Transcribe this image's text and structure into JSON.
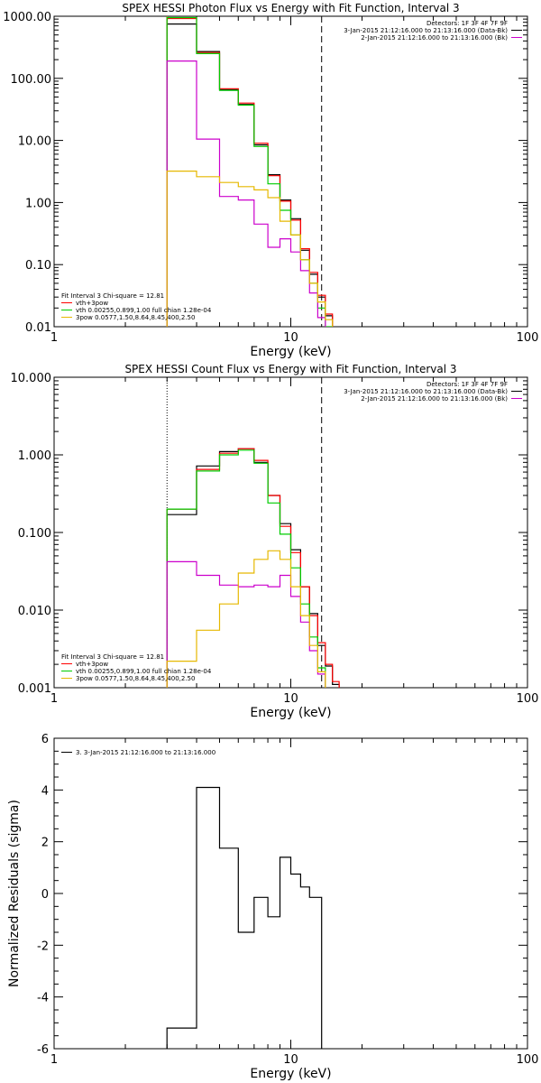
{
  "chart_data": [
    {
      "type": "line",
      "title": "SPEX HESSI Photon Flux vs Energy with Fit Function, Interval 3",
      "xlabel": "Energy (keV)",
      "ylabel": "",
      "xscale": "log",
      "yscale": "log",
      "xlim": [
        1,
        100
      ],
      "ylim": [
        0.01,
        1000
      ],
      "x_ticks": [
        "1",
        "10",
        "100"
      ],
      "y_ticks": [
        "0.01",
        "0.10",
        "1.00",
        "10.00",
        "100.00",
        "1000.00"
      ],
      "vlines": [
        {
          "x": 3.0,
          "style": "dotted",
          "color": "#ff8c00"
        },
        {
          "x": 13.5,
          "style": "dashed",
          "color": "#000000"
        }
      ],
      "legend_top": {
        "placement": "top-right",
        "lines": [
          {
            "text": "Detectors: 1F 3F 4F 7F 9F",
            "color": ""
          },
          {
            "text": "3-Jan-2015 21:12:16.000 to 21:13:16.000 (Data-Bk)",
            "color": "#000000"
          },
          {
            "text": "2-Jan-2015 21:12:16.000 to 21:13:16.000 (Bk)",
            "color": "#cc00cc"
          }
        ]
      },
      "legend_bottom": {
        "placement": "bottom-left",
        "lines": [
          {
            "text": "Fit Interval 3   Chi-square = 12.81",
            "color": ""
          },
          {
            "text": "vth+3pow",
            "color": "#ff0000"
          },
          {
            "text": "vth 0.00255,0.899,1.00   full chian 1.28e-04",
            "color": "#00cc00"
          },
          {
            "text": "3pow 0.0577,1.50,8.64,8.45,400,2.50",
            "color": "#e6b800"
          }
        ]
      },
      "edges": [
        3.0,
        4.0,
        5.0,
        6.0,
        7.0,
        8.0,
        9.0,
        10.0,
        11.0,
        12.0,
        13.0,
        14.0,
        15.0,
        16.0,
        17.0
      ],
      "series": [
        {
          "color": "#000000",
          "values": [
            750,
            270,
            66,
            38,
            8.5,
            2.8,
            1.1,
            0.55,
            0.17,
            0.07,
            0.03,
            0.015,
            null,
            null
          ]
        },
        {
          "color": "#ff0000",
          "values": [
            920,
            260,
            68,
            40,
            9.0,
            2.7,
            1.05,
            0.52,
            0.18,
            0.075,
            0.032,
            0.016,
            null,
            null
          ]
        },
        {
          "color": "#00cc00",
          "values": [
            950,
            250,
            64,
            37,
            8.0,
            2.0,
            0.75,
            0.3,
            0.12,
            0.05,
            0.02,
            0.009,
            null,
            null
          ]
        },
        {
          "color": "#cc00cc",
          "values": [
            190,
            10.5,
            1.25,
            1.1,
            0.45,
            0.19,
            0.26,
            0.16,
            0.08,
            0.035,
            0.014,
            null,
            null,
            null
          ]
        },
        {
          "color": "#e6b800",
          "values": [
            3.2,
            2.6,
            2.1,
            1.8,
            1.6,
            1.2,
            0.5,
            0.3,
            0.12,
            0.05,
            0.025,
            0.013,
            null,
            null
          ]
        }
      ]
    },
    {
      "type": "line",
      "title": "SPEX HESSI Count Flux vs Energy with Fit Function, Interval 3",
      "xlabel": "Energy (keV)",
      "ylabel": "",
      "xscale": "log",
      "yscale": "log",
      "xlim": [
        1,
        100
      ],
      "ylim": [
        0.001,
        10
      ],
      "x_ticks": [
        "1",
        "10",
        "100"
      ],
      "y_ticks": [
        "0.001",
        "0.010",
        "0.100",
        "1.000",
        "10.000"
      ],
      "vlines": [
        {
          "x": 3.0,
          "style": "dotted",
          "color": "#000000"
        },
        {
          "x": 13.5,
          "style": "dashed",
          "color": "#000000"
        }
      ],
      "legend_top": {
        "placement": "top-right",
        "lines": [
          {
            "text": "Detectors: 1F 3F 4F 7F 9F",
            "color": ""
          },
          {
            "text": "3-Jan-2015 21:12:16.000 to 21:13:16.000 (Data-Bk)",
            "color": "#000000"
          },
          {
            "text": "2-Jan-2015 21:12:16.000 to 21:13:16.000 (Bk)",
            "color": "#cc00cc"
          }
        ]
      },
      "legend_bottom": {
        "placement": "bottom-left",
        "lines": [
          {
            "text": "Fit Interval 3   Chi-square = 12.81",
            "color": ""
          },
          {
            "text": "vth+3pow",
            "color": "#ff0000"
          },
          {
            "text": "vth 0.00255,0.899,1.00   full chian 1.28e-04",
            "color": "#00cc00"
          },
          {
            "text": "3pow 0.0577,1.50,8.64,8.45,400,2.50",
            "color": "#e6b800"
          }
        ]
      },
      "edges": [
        3.0,
        4.0,
        5.0,
        6.0,
        7.0,
        8.0,
        9.0,
        10.0,
        11.0,
        12.0,
        13.0,
        14.0,
        15.0,
        16.0,
        17.0,
        18.0
      ],
      "series": [
        {
          "color": "#000000",
          "values": [
            0.17,
            0.72,
            1.1,
            1.2,
            0.8,
            0.3,
            0.13,
            0.06,
            0.02,
            0.009,
            0.0035,
            0.0019,
            0.0011,
            null,
            null
          ]
        },
        {
          "color": "#ff0000",
          "values": [
            0.2,
            0.65,
            1.05,
            1.2,
            0.85,
            0.3,
            0.12,
            0.055,
            0.02,
            0.0085,
            0.0038,
            0.002,
            0.0012,
            null,
            null
          ]
        },
        {
          "color": "#00cc00",
          "values": [
            0.2,
            0.62,
            1.0,
            1.15,
            0.78,
            0.24,
            0.095,
            0.035,
            0.012,
            0.0045,
            0.0018,
            null,
            null,
            null,
            null
          ]
        },
        {
          "color": "#cc00cc",
          "values": [
            0.042,
            0.028,
            0.021,
            0.02,
            0.021,
            0.02,
            0.028,
            0.015,
            0.007,
            0.003,
            0.0015,
            null,
            null,
            null,
            null
          ]
        },
        {
          "color": "#e6b800",
          "values": [
            0.0022,
            0.0055,
            0.012,
            0.03,
            0.045,
            0.058,
            0.045,
            0.02,
            0.0085,
            0.0035,
            0.0016,
            null,
            null,
            null,
            null
          ]
        }
      ]
    },
    {
      "type": "line",
      "title": "",
      "xlabel": "Energy (keV)",
      "ylabel": "Normalized Residuals (sigma)",
      "xscale": "log",
      "yscale": "linear",
      "xlim": [
        1,
        100
      ],
      "ylim": [
        -6,
        6
      ],
      "x_ticks": [
        "1",
        "10",
        "100"
      ],
      "y_ticks": [
        "-6",
        "-4",
        "-2",
        "0",
        "2",
        "4",
        "6"
      ],
      "legend": {
        "placement": "top-left",
        "lines": [
          {
            "text": "3. 3-Jan-2015 21:12:16.000 to 21:13:16.000",
            "color": "#000000"
          }
        ]
      },
      "edges": [
        3.0,
        4.0,
        5.0,
        6.0,
        7.0,
        8.0,
        9.0,
        10.0,
        11.0,
        12.0,
        13.0,
        13.5
      ],
      "series": [
        {
          "color": "#000000",
          "values": [
            -5.2,
            4.1,
            1.75,
            -1.5,
            -0.15,
            -0.9,
            1.4,
            0.75,
            0.25,
            -0.15,
            -0.15
          ]
        }
      ]
    }
  ]
}
